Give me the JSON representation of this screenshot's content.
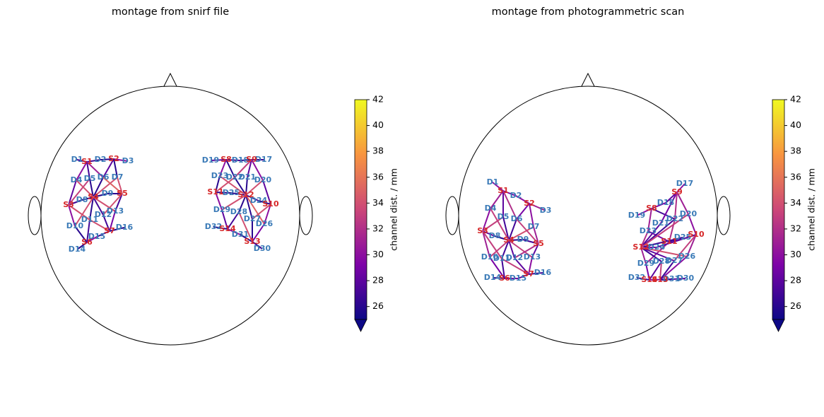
{
  "chart_data": [
    {
      "type": "montage",
      "title": "montage from snirf file",
      "sources": [
        {
          "label": "S1",
          "x": -118,
          "y": -76
        },
        {
          "label": "S2",
          "x": -80,
          "y": -80
        },
        {
          "label": "S3",
          "x": -144,
          "y": -15
        },
        {
          "label": "S4",
          "x": -109,
          "y": -26
        },
        {
          "label": "S5",
          "x": -68,
          "y": -31
        },
        {
          "label": "S6",
          "x": -118,
          "y": 38
        },
        {
          "label": "S7",
          "x": -86,
          "y": 22
        },
        {
          "label": "S8",
          "x": 79,
          "y": -79
        },
        {
          "label": "S9",
          "x": 115,
          "y": -79
        },
        {
          "label": "S10",
          "x": 142,
          "y": -16
        },
        {
          "label": "S11",
          "x": 64,
          "y": -33
        },
        {
          "label": "S12",
          "x": 107,
          "y": -29
        },
        {
          "label": "S13",
          "x": 116,
          "y": 37
        },
        {
          "label": "S14",
          "x": 81,
          "y": 19
        }
      ],
      "detectors": [
        {
          "label": "D1",
          "x": -132,
          "y": -79
        },
        {
          "label": "D2",
          "x": -99,
          "y": -79
        },
        {
          "label": "D3",
          "x": -60,
          "y": -77
        },
        {
          "label": "D4",
          "x": -133,
          "y": -50
        },
        {
          "label": "D5",
          "x": -114,
          "y": -52
        },
        {
          "label": "D6",
          "x": -95,
          "y": -54
        },
        {
          "label": "D7",
          "x": -75,
          "y": -54
        },
        {
          "label": "D8",
          "x": -125,
          "y": -22
        },
        {
          "label": "D9",
          "x": -89,
          "y": -31
        },
        {
          "label": "D10",
          "x": -135,
          "y": 15
        },
        {
          "label": "D11",
          "x": -114,
          "y": 6
        },
        {
          "label": "D12",
          "x": -95,
          "y": -1
        },
        {
          "label": "D13",
          "x": -78,
          "y": -6
        },
        {
          "label": "D14",
          "x": -132,
          "y": 48
        },
        {
          "label": "D15",
          "x": -104,
          "y": 30
        },
        {
          "label": "D16",
          "x": -65,
          "y": 17
        },
        {
          "label": "D17",
          "x": 132,
          "y": -79
        },
        {
          "label": "D18",
          "x": 99,
          "y": -78
        },
        {
          "label": "D19",
          "x": 57,
          "y": -78
        },
        {
          "label": "D20",
          "x": 131,
          "y": -50
        },
        {
          "label": "D21",
          "x": 109,
          "y": -54
        },
        {
          "label": "D22",
          "x": 91,
          "y": -54
        },
        {
          "label": "D23",
          "x": 70,
          "y": -56
        },
        {
          "label": "D24",
          "x": 125,
          "y": -21
        },
        {
          "label": "D25",
          "x": 86,
          "y": -32
        },
        {
          "label": "D26",
          "x": 133,
          "y": 12
        },
        {
          "label": "D27",
          "x": 116,
          "y": 5
        },
        {
          "label": "D28",
          "x": 97,
          "y": -5
        },
        {
          "label": "D29",
          "x": 73,
          "y": -8
        },
        {
          "label": "D30",
          "x": 130,
          "y": 47
        },
        {
          "label": "D31",
          "x": 99,
          "y": 27
        },
        {
          "label": "D32",
          "x": 61,
          "y": 16
        }
      ],
      "channels": [
        [
          0,
          0,
          27
        ],
        [
          0,
          1,
          27
        ],
        [
          0,
          3,
          30
        ],
        [
          0,
          4,
          27
        ],
        [
          0,
          5,
          31
        ],
        [
          1,
          1,
          26
        ],
        [
          1,
          2,
          30
        ],
        [
          1,
          5,
          28
        ],
        [
          1,
          6,
          26
        ],
        [
          2,
          3,
          28
        ],
        [
          2,
          7,
          27
        ],
        [
          2,
          9,
          30
        ],
        [
          2,
          4,
          33
        ],
        [
          3,
          4,
          26
        ],
        [
          3,
          5,
          26
        ],
        [
          3,
          7,
          26
        ],
        [
          3,
          8,
          26
        ],
        [
          3,
          10,
          26
        ],
        [
          3,
          11,
          27
        ],
        [
          3,
          3,
          34
        ],
        [
          3,
          6,
          34
        ],
        [
          3,
          9,
          34
        ],
        [
          3,
          12,
          34
        ],
        [
          4,
          6,
          34
        ],
        [
          4,
          8,
          26
        ],
        [
          4,
          12,
          27
        ],
        [
          4,
          5,
          35
        ],
        [
          4,
          11,
          34
        ],
        [
          5,
          9,
          26
        ],
        [
          5,
          10,
          27
        ],
        [
          5,
          13,
          26
        ],
        [
          5,
          14,
          30
        ],
        [
          6,
          11,
          27
        ],
        [
          6,
          12,
          29
        ],
        [
          6,
          14,
          27
        ],
        [
          6,
          15,
          26
        ],
        [
          6,
          10,
          34
        ],
        [
          2,
          10,
          34
        ],
        [
          7,
          18,
          28
        ],
        [
          7,
          17,
          27
        ],
        [
          7,
          21,
          26
        ],
        [
          7,
          22,
          30
        ],
        [
          8,
          16,
          27
        ],
        [
          8,
          17,
          26
        ],
        [
          8,
          19,
          30
        ],
        [
          8,
          20,
          28
        ],
        [
          8,
          21,
          33
        ],
        [
          10,
          22,
          26
        ],
        [
          10,
          24,
          26
        ],
        [
          10,
          28,
          30
        ],
        [
          10,
          21,
          34
        ],
        [
          11,
          20,
          26
        ],
        [
          11,
          21,
          26
        ],
        [
          11,
          23,
          27
        ],
        [
          11,
          24,
          26
        ],
        [
          11,
          26,
          26
        ],
        [
          11,
          27,
          26
        ],
        [
          11,
          19,
          34
        ],
        [
          11,
          22,
          34
        ],
        [
          11,
          28,
          34
        ],
        [
          11,
          25,
          35
        ],
        [
          9,
          19,
          28
        ],
        [
          9,
          23,
          26
        ],
        [
          9,
          25,
          30
        ],
        [
          9,
          26,
          34
        ],
        [
          13,
          28,
          28
        ],
        [
          13,
          31,
          26
        ],
        [
          13,
          27,
          27
        ],
        [
          13,
          30,
          30
        ],
        [
          12,
          29,
          27
        ],
        [
          12,
          30,
          26
        ],
        [
          12,
          25,
          29
        ],
        [
          12,
          26,
          26
        ],
        [
          12,
          27,
          34
        ]
      ],
      "colorbar": {
        "label": "channel dist. / mm",
        "clim": [
          25,
          42
        ],
        "ticks": [
          26,
          28,
          30,
          32,
          34,
          36,
          38,
          40,
          42
        ],
        "colormap": [
          "#0d0887",
          "#7e03a8",
          "#cc4778",
          "#f89540",
          "#f0f921"
        ]
      }
    },
    {
      "type": "montage",
      "title": "montage from photogrammetric scan",
      "sources": [
        {
          "label": "S1",
          "x": -120,
          "y": -35
        },
        {
          "label": "S2",
          "x": -83,
          "y": -17
        },
        {
          "label": "S3",
          "x": -149,
          "y": 22
        },
        {
          "label": "S4",
          "x": -112,
          "y": 35
        },
        {
          "label": "S5",
          "x": -70,
          "y": 40
        },
        {
          "label": "S6",
          "x": -118,
          "y": 89
        },
        {
          "label": "S7",
          "x": -84,
          "y": 83
        },
        {
          "label": "S8",
          "x": 90,
          "y": -10
        },
        {
          "label": "S9",
          "x": 126,
          "y": -33
        },
        {
          "label": "S10",
          "x": 153,
          "y": 27
        },
        {
          "label": "S11",
          "x": 115,
          "y": 37
        },
        {
          "label": "S12",
          "x": 75,
          "y": 45
        },
        {
          "label": "S13",
          "x": 102,
          "y": 91
        },
        {
          "label": "S14",
          "x": 87,
          "y": 91
        }
      ],
      "detectors": [
        {
          "label": "D1",
          "x": -135,
          "y": -47
        },
        {
          "label": "D2",
          "x": -102,
          "y": -28
        },
        {
          "label": "D3",
          "x": -60,
          "y": -7
        },
        {
          "label": "D4",
          "x": -138,
          "y": -10
        },
        {
          "label": "D5",
          "x": -120,
          "y": 2
        },
        {
          "label": "D6",
          "x": -101,
          "y": 5
        },
        {
          "label": "D7",
          "x": -77,
          "y": 16
        },
        {
          "label": "D8",
          "x": -132,
          "y": 29
        },
        {
          "label": "D9",
          "x": -92,
          "y": 34
        },
        {
          "label": "D10",
          "x": -139,
          "y": 59
        },
        {
          "label": "D11",
          "x": -122,
          "y": 61
        },
        {
          "label": "D12",
          "x": -104,
          "y": 60
        },
        {
          "label": "D13",
          "x": -79,
          "y": 59
        },
        {
          "label": "D14",
          "x": -135,
          "y": 88
        },
        {
          "label": "D15",
          "x": -99,
          "y": 89
        },
        {
          "label": "D16",
          "x": -64,
          "y": 81
        },
        {
          "label": "D17",
          "x": 137,
          "y": -45
        },
        {
          "label": "D18",
          "x": 110,
          "y": -18
        },
        {
          "label": "D19",
          "x": 69,
          "y": 0
        },
        {
          "label": "D20",
          "x": 142,
          "y": -2
        },
        {
          "label": "D21",
          "x": 103,
          "y": 11
        },
        {
          "label": "D22",
          "x": 123,
          "y": 5
        },
        {
          "label": "D23",
          "x": 85,
          "y": 22
        },
        {
          "label": "D24",
          "x": 97,
          "y": 45
        },
        {
          "label": "D25",
          "x": 134,
          "y": 31
        },
        {
          "label": "D26",
          "x": 140,
          "y": 58
        },
        {
          "label": "D27",
          "x": 122,
          "y": 64
        },
        {
          "label": "D28",
          "x": 104,
          "y": 65
        },
        {
          "label": "D29",
          "x": 82,
          "y": 68
        },
        {
          "label": "D30",
          "x": 138,
          "y": 89
        },
        {
          "label": "D31",
          "x": 118,
          "y": 90
        },
        {
          "label": "D32",
          "x": 69,
          "y": 88
        }
      ],
      "channels": [
        [
          0,
          0,
          30
        ],
        [
          0,
          1,
          29
        ],
        [
          0,
          3,
          31
        ],
        [
          0,
          4,
          28
        ],
        [
          0,
          5,
          32
        ],
        [
          1,
          1,
          30
        ],
        [
          1,
          2,
          31
        ],
        [
          1,
          5,
          29
        ],
        [
          1,
          6,
          30
        ],
        [
          2,
          3,
          30
        ],
        [
          2,
          7,
          28
        ],
        [
          2,
          9,
          31
        ],
        [
          2,
          4,
          33
        ],
        [
          3,
          4,
          27
        ],
        [
          3,
          5,
          27
        ],
        [
          3,
          7,
          26
        ],
        [
          3,
          8,
          26
        ],
        [
          3,
          10,
          27
        ],
        [
          3,
          11,
          28
        ],
        [
          3,
          3,
          33
        ],
        [
          3,
          6,
          34
        ],
        [
          3,
          9,
          33
        ],
        [
          3,
          12,
          33
        ],
        [
          4,
          6,
          31
        ],
        [
          4,
          8,
          27
        ],
        [
          4,
          12,
          28
        ],
        [
          4,
          5,
          33
        ],
        [
          4,
          11,
          32
        ],
        [
          5,
          9,
          29
        ],
        [
          5,
          10,
          27
        ],
        [
          5,
          13,
          26
        ],
        [
          5,
          14,
          29
        ],
        [
          6,
          11,
          28
        ],
        [
          6,
          12,
          30
        ],
        [
          6,
          14,
          28
        ],
        [
          6,
          15,
          27
        ],
        [
          6,
          10,
          33
        ],
        [
          2,
          10,
          33
        ],
        [
          7,
          18,
          30
        ],
        [
          7,
          17,
          29
        ],
        [
          7,
          21,
          27
        ],
        [
          7,
          22,
          31
        ],
        [
          8,
          16,
          30
        ],
        [
          8,
          17,
          28
        ],
        [
          8,
          19,
          31
        ],
        [
          8,
          20,
          29
        ],
        [
          8,
          21,
          32
        ],
        [
          10,
          22,
          29
        ],
        [
          10,
          24,
          27
        ],
        [
          10,
          28,
          31
        ],
        [
          10,
          21,
          32
        ],
        [
          11,
          20,
          28
        ],
        [
          11,
          21,
          27
        ],
        [
          11,
          23,
          29
        ],
        [
          11,
          24,
          27
        ],
        [
          11,
          26,
          28
        ],
        [
          11,
          27,
          27
        ],
        [
          11,
          19,
          33
        ],
        [
          11,
          22,
          32
        ],
        [
          11,
          28,
          31
        ],
        [
          11,
          25,
          34
        ],
        [
          9,
          19,
          30
        ],
        [
          9,
          23,
          28
        ],
        [
          9,
          25,
          31
        ],
        [
          9,
          26,
          33
        ],
        [
          13,
          28,
          29
        ],
        [
          13,
          31,
          27
        ],
        [
          13,
          27,
          28
        ],
        [
          13,
          30,
          30
        ],
        [
          12,
          29,
          28
        ],
        [
          12,
          30,
          27
        ],
        [
          12,
          25,
          30
        ],
        [
          12,
          26,
          27
        ],
        [
          12,
          27,
          33
        ]
      ],
      "colorbar": {
        "label": "channel dist. / mm",
        "clim": [
          25,
          42
        ],
        "ticks": [
          26,
          28,
          30,
          32,
          34,
          36,
          38,
          40,
          42
        ],
        "colormap": [
          "#0d0887",
          "#7e03a8",
          "#cc4778",
          "#f89540",
          "#f0f921"
        ]
      }
    }
  ]
}
